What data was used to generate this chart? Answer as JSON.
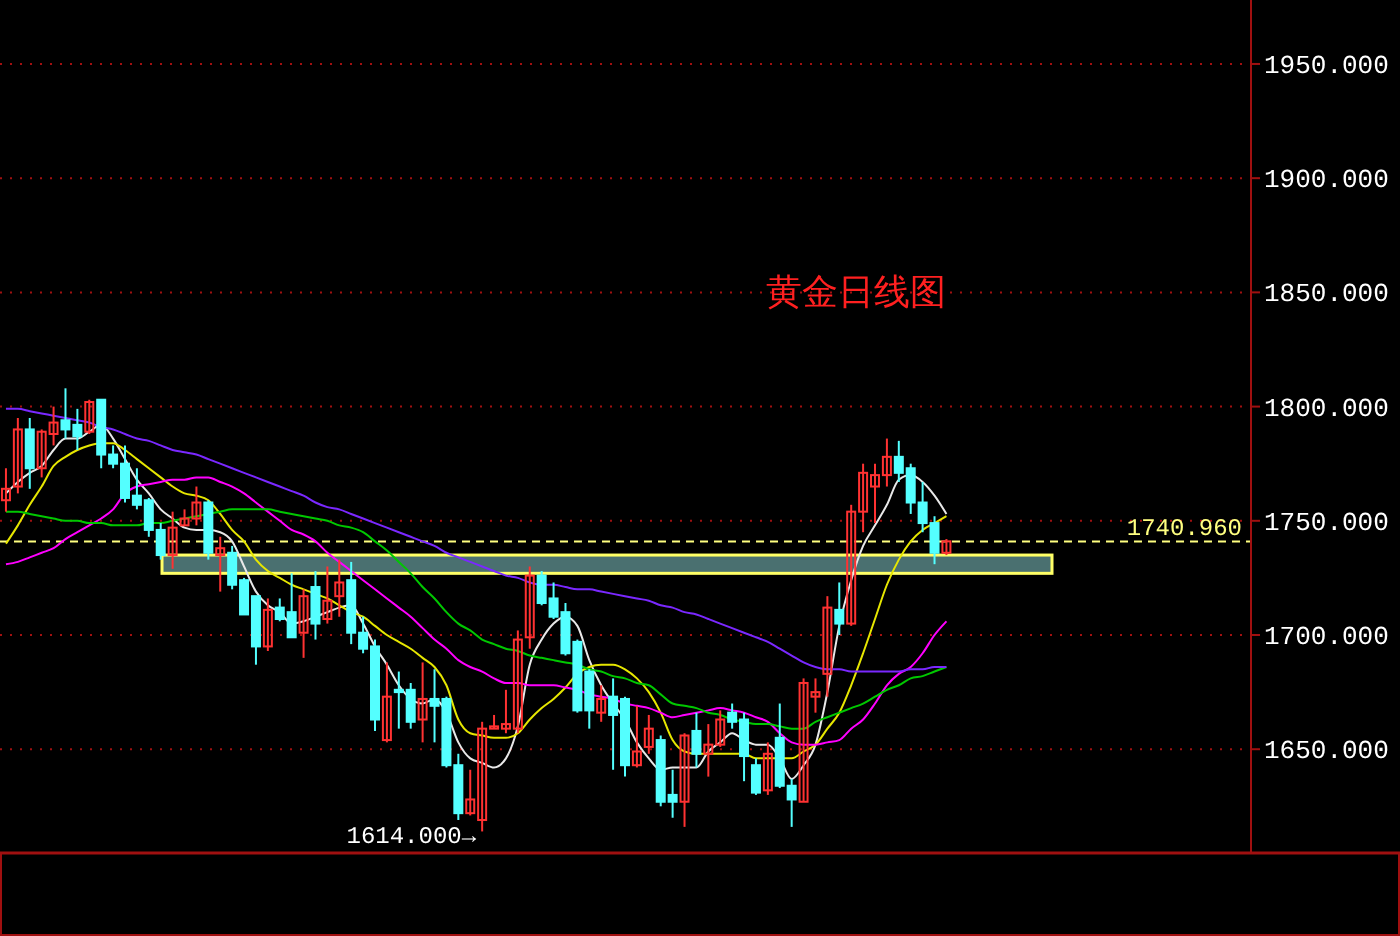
{
  "chart_data": {
    "type": "candlestick",
    "title": "黄金日线图",
    "categories": [
      null,
      null,
      null,
      null,
      null,
      null,
      null,
      null,
      null,
      null,
      null,
      null,
      null,
      null,
      null,
      null,
      null,
      null,
      null,
      null,
      null,
      null,
      null,
      null,
      null,
      null,
      null,
      null,
      null,
      null,
      null,
      null,
      null,
      null,
      null,
      null,
      null,
      null,
      null,
      null,
      null,
      null,
      null,
      null,
      null,
      null,
      null,
      null,
      null,
      null,
      null,
      null,
      null,
      null,
      null,
      null,
      null,
      null,
      null,
      null,
      null,
      null,
      null,
      null,
      null,
      null,
      null,
      null,
      null,
      null,
      null,
      null,
      null,
      null,
      null,
      null,
      null,
      null,
      null,
      null,
      null,
      null,
      null,
      null,
      null,
      null,
      null,
      null,
      null,
      null,
      null,
      null,
      null,
      null,
      null,
      null,
      null,
      null,
      null,
      null,
      null,
      null,
      null,
      null,
      null
    ],
    "ohlc": [
      [
        1759,
        1773,
        1754,
        1764
      ],
      [
        1765,
        1795,
        1762,
        1790
      ],
      [
        1790,
        1795,
        1764,
        1773
      ],
      [
        1773,
        1790,
        1769,
        1789
      ],
      [
        1788,
        1800,
        1783,
        1793
      ],
      [
        1794,
        1808,
        1786,
        1790
      ],
      [
        1792,
        1799,
        1781,
        1787
      ],
      [
        1789,
        1803,
        1788,
        1802
      ],
      [
        1803,
        1803,
        1773,
        1779
      ],
      [
        1779,
        1783,
        1773,
        1775
      ],
      [
        1775,
        1783,
        1758,
        1760
      ],
      [
        1761,
        1773,
        1755,
        1757
      ],
      [
        1759,
        1760,
        1743,
        1746
      ],
      [
        1746,
        1749,
        1733,
        1735
      ],
      [
        1735,
        1754,
        1729,
        1747
      ],
      [
        1748,
        1755,
        1748,
        1751
      ],
      [
        1751,
        1765,
        1748,
        1758
      ],
      [
        1758,
        1759,
        1733,
        1736
      ],
      [
        1735,
        1743,
        1719,
        1738
      ],
      [
        1736,
        1739,
        1720,
        1722
      ],
      [
        1724,
        1725,
        1709,
        1709
      ],
      [
        1717,
        1717,
        1687,
        1695
      ],
      [
        1695,
        1716,
        1693,
        1711
      ],
      [
        1712,
        1716,
        1706,
        1707
      ],
      [
        1710,
        1727,
        1699,
        1699
      ],
      [
        1701,
        1720,
        1690,
        1717
      ],
      [
        1721,
        1728,
        1698,
        1705
      ],
      [
        1707,
        1730,
        1705,
        1715
      ],
      [
        1717,
        1733,
        1708,
        1723
      ],
      [
        1724,
        1732,
        1696,
        1701
      ],
      [
        1701,
        1708,
        1692,
        1694
      ],
      [
        1695,
        1698,
        1658,
        1663
      ],
      [
        1654,
        1688,
        1653,
        1673
      ],
      [
        1676,
        1684,
        1659,
        1675
      ],
      [
        1676,
        1679,
        1659,
        1662
      ],
      [
        1663,
        1688,
        1653,
        1672
      ],
      [
        1672,
        1685,
        1653,
        1669
      ],
      [
        1672,
        1673,
        1642,
        1643
      ],
      [
        1643,
        1648,
        1619,
        1622
      ],
      [
        1622,
        1641,
        1621,
        1628
      ],
      [
        1619,
        1662,
        1614,
        1659
      ],
      [
        1659,
        1665,
        1659,
        1660
      ],
      [
        1659,
        1676,
        1657,
        1661
      ],
      [
        1659,
        1702,
        1657,
        1698
      ],
      [
        1699,
        1730,
        1694,
        1726
      ],
      [
        1726,
        1728,
        1713,
        1714
      ],
      [
        1716,
        1723,
        1707,
        1708
      ],
      [
        1710,
        1714,
        1691,
        1692
      ],
      [
        1697,
        1698,
        1666,
        1667
      ],
      [
        1684,
        1685,
        1659,
        1667
      ],
      [
        1666,
        1678,
        1662,
        1672
      ],
      [
        1673,
        1681,
        1641,
        1665
      ],
      [
        1672,
        1673,
        1638,
        1643
      ],
      [
        1643,
        1669,
        1642,
        1649
      ],
      [
        1651,
        1665,
        1648,
        1659
      ],
      [
        1654,
        1656,
        1625,
        1627
      ],
      [
        1630,
        1641,
        1620,
        1627
      ],
      [
        1627,
        1657,
        1616,
        1656
      ],
      [
        1658,
        1666,
        1642,
        1648
      ],
      [
        1648,
        1661,
        1638,
        1652
      ],
      [
        1652,
        1667,
        1651,
        1663
      ],
      [
        1666,
        1670,
        1659,
        1662
      ],
      [
        1663,
        1666,
        1636,
        1647
      ],
      [
        1643,
        1646,
        1630,
        1631
      ],
      [
        1632,
        1653,
        1630,
        1648
      ],
      [
        1655,
        1670,
        1633,
        1634
      ],
      [
        1634,
        1637,
        1616,
        1628
      ],
      [
        1627,
        1681,
        1627,
        1679
      ],
      [
        1673,
        1681,
        1666,
        1675
      ],
      [
        1683,
        1717,
        1673,
        1712
      ],
      [
        1711,
        1723,
        1700,
        1705
      ],
      [
        1705,
        1757,
        1704,
        1754
      ],
      [
        1754,
        1775,
        1745,
        1771
      ],
      [
        1765,
        1775,
        1749,
        1770
      ],
      [
        1770,
        1786,
        1765,
        1778
      ],
      [
        1778,
        1785,
        1767,
        1771
      ],
      [
        1773,
        1775,
        1753,
        1758
      ],
      [
        1758,
        1767,
        1745,
        1749
      ],
      [
        1749,
        1752,
        1731,
        1736
      ],
      [
        1736,
        1742,
        1735,
        1741
      ],
      null,
      null,
      null,
      null,
      null,
      null,
      null,
      null,
      null,
      null,
      null,
      null,
      null,
      null,
      null,
      null,
      null,
      null,
      null,
      null,
      null,
      null,
      null,
      null,
      null
    ],
    "series": [
      {
        "type": "line",
        "color": "#e8e8e8",
        "values": [
          1762,
          1767,
          1771,
          1774,
          1781,
          1786,
          1786,
          1789,
          1792,
          1786,
          1777,
          1768,
          1762,
          1755,
          1751,
          1747,
          1746,
          1746,
          1745,
          1741,
          1730,
          1719,
          1713,
          1710,
          1705,
          1706,
          1708,
          1710,
          1712,
          1713,
          1705,
          1695,
          1687,
          1678,
          1672,
          1670,
          1672,
          1666,
          1653,
          1646,
          1644,
          1642,
          1646,
          1660,
          1687,
          1698,
          1705,
          1708,
          1704,
          1689,
          1678,
          1670,
          1663,
          1653,
          1646,
          1641,
          1642,
          1642,
          1642,
          1649,
          1653,
          1657,
          1654,
          1652,
          1652,
          1646,
          1637,
          1643,
          1652,
          1675,
          1704,
          1724,
          1739,
          1748,
          1757,
          1768,
          1770,
          1767,
          1761,
          1753,
          null,
          null,
          null,
          null,
          null,
          null,
          null,
          null,
          null,
          null,
          null,
          null,
          null,
          null,
          null,
          null,
          null,
          null,
          null,
          null,
          null,
          null,
          null,
          null,
          null
        ]
      },
      {
        "type": "line",
        "color": "#e6e600",
        "values": [
          1740,
          1748,
          1757,
          1765,
          1774,
          1778,
          1781,
          1783,
          1784,
          1784,
          1781,
          1777,
          1773,
          1769,
          1765,
          1762,
          1761,
          1759,
          1753,
          1746,
          1741,
          1733,
          1728,
          1725,
          1722,
          1720,
          1718,
          1716,
          1713,
          1710,
          1708,
          1704,
          1700,
          1697,
          1694,
          1690,
          1686,
          1678,
          1663,
          1657,
          1656,
          1655,
          1655,
          1657,
          1663,
          1668,
          1672,
          1677,
          1683,
          1686,
          1687,
          1687,
          1685,
          1681,
          1675,
          1666,
          1654,
          1649,
          1648,
          1648,
          1648,
          1648,
          1648,
          1646,
          1646,
          1646,
          1646,
          1649,
          1652,
          1659,
          1666,
          1678,
          1692,
          1707,
          1722,
          1733,
          1741,
          1746,
          1749,
          1752,
          null,
          null,
          null,
          null,
          null,
          null,
          null,
          null,
          null,
          null,
          null,
          null,
          null,
          null,
          null,
          null,
          null,
          null,
          null,
          null,
          null,
          null,
          null,
          null,
          null
        ]
      },
      {
        "type": "line",
        "color": "#ff00ff",
        "values": [
          1731,
          1732,
          1734,
          1736,
          1738,
          1742,
          1745,
          1748,
          1751,
          1755,
          1762,
          1765,
          1766,
          1767,
          1768,
          1768,
          1769,
          1769,
          1767,
          1765,
          1762,
          1758,
          1754,
          1750,
          1746,
          1744,
          1741,
          1736,
          1732,
          1728,
          1724,
          1720,
          1716,
          1712,
          1708,
          1703,
          1698,
          1694,
          1689,
          1686,
          1684,
          1681,
          1679,
          1679,
          1678,
          1678,
          1678,
          1677,
          1676,
          1674,
          1673,
          1672,
          1670,
          1669,
          1668,
          1666,
          1664,
          1665,
          1666,
          1667,
          1668,
          1667,
          1666,
          1664,
          1662,
          1657,
          1653,
          1652,
          1652,
          1653,
          1654,
          1659,
          1663,
          1670,
          1678,
          1683,
          1686,
          1692,
          1700,
          1706,
          null,
          null,
          null,
          null,
          null,
          null,
          null,
          null,
          null,
          null,
          null,
          null,
          null,
          null,
          null,
          null,
          null,
          null,
          null,
          null,
          null,
          null,
          null,
          null,
          null
        ]
      },
      {
        "type": "line",
        "color": "#00c800",
        "values": [
          1754,
          1754,
          1753,
          1752,
          1751,
          1750,
          1750,
          1749,
          1749,
          1748,
          1748,
          1748,
          1749,
          1749,
          1750,
          1751,
          1752,
          1753,
          1754,
          1755,
          1755,
          1755,
          1755,
          1754,
          1753,
          1752,
          1751,
          1750,
          1748,
          1747,
          1745,
          1741,
          1737,
          1732,
          1727,
          1721,
          1716,
          1710,
          1705,
          1702,
          1698,
          1696,
          1694,
          1693,
          1691,
          1690,
          1689,
          1688,
          1687,
          1685,
          1684,
          1682,
          1681,
          1679,
          1678,
          1674,
          1670,
          1669,
          1668,
          1666,
          1665,
          1663,
          1662,
          1661,
          1661,
          1660,
          1659,
          1659,
          1662,
          1664,
          1666,
          1668,
          1670,
          1673,
          1676,
          1678,
          1681,
          1682,
          1684,
          1686,
          null,
          null,
          null,
          null,
          null,
          null,
          null,
          null,
          null,
          null,
          null,
          null,
          null,
          null,
          null,
          null,
          null,
          null,
          null,
          null,
          null,
          null,
          null,
          null,
          null
        ]
      },
      {
        "type": "line",
        "color": "#7a28ff",
        "values": [
          1799,
          1799,
          1798,
          1797,
          1796,
          1795,
          1794,
          1793,
          1791,
          1790,
          1788,
          1786,
          1785,
          1783,
          1781,
          1780,
          1779,
          1777,
          1775,
          1773,
          1771,
          1769,
          1767,
          1765,
          1763,
          1761,
          1758,
          1756,
          1755,
          1753,
          1751,
          1749,
          1747,
          1745,
          1743,
          1741,
          1739,
          1736,
          1734,
          1732,
          1730,
          1728,
          1726,
          1725,
          1723,
          1722,
          1722,
          1721,
          1720,
          1720,
          1719,
          1718,
          1717,
          1716,
          1715,
          1713,
          1712,
          1710,
          1709,
          1707,
          1705,
          1703,
          1701,
          1699,
          1697,
          1694,
          1691,
          1688,
          1686,
          1685,
          1685,
          1684,
          1684,
          1684,
          1684,
          1684,
          1685,
          1685,
          1686,
          1686,
          null,
          null,
          null,
          null,
          null,
          null,
          null,
          null,
          null,
          null,
          null,
          null,
          null,
          null,
          null,
          null,
          null,
          null,
          null,
          null,
          null,
          null,
          null,
          null,
          null
        ]
      }
    ],
    "ylim": [
      1605,
      1978
    ],
    "yticks": [
      {
        "value": 1650,
        "label": "1650.000"
      },
      {
        "value": 1700,
        "label": "1700.000"
      },
      {
        "value": 1750,
        "label": "1750.000"
      },
      {
        "value": 1800,
        "label": "1800.000"
      },
      {
        "value": 1850,
        "label": "1850.000"
      },
      {
        "value": 1900,
        "label": "1900.000"
      },
      {
        "value": 1950,
        "label": "1950.000"
      }
    ],
    "grid": "y",
    "ref_lines": [
      {
        "axis": "y",
        "value": 1740.96,
        "label": "1740.960",
        "color": "#ffff80",
        "line_style": "dashed"
      }
    ],
    "bands": [
      {
        "axis": "y",
        "from": 1727,
        "to": 1735,
        "color": "#4a7070"
      }
    ],
    "annotations": [
      "1614.000→"
    ]
  }
}
